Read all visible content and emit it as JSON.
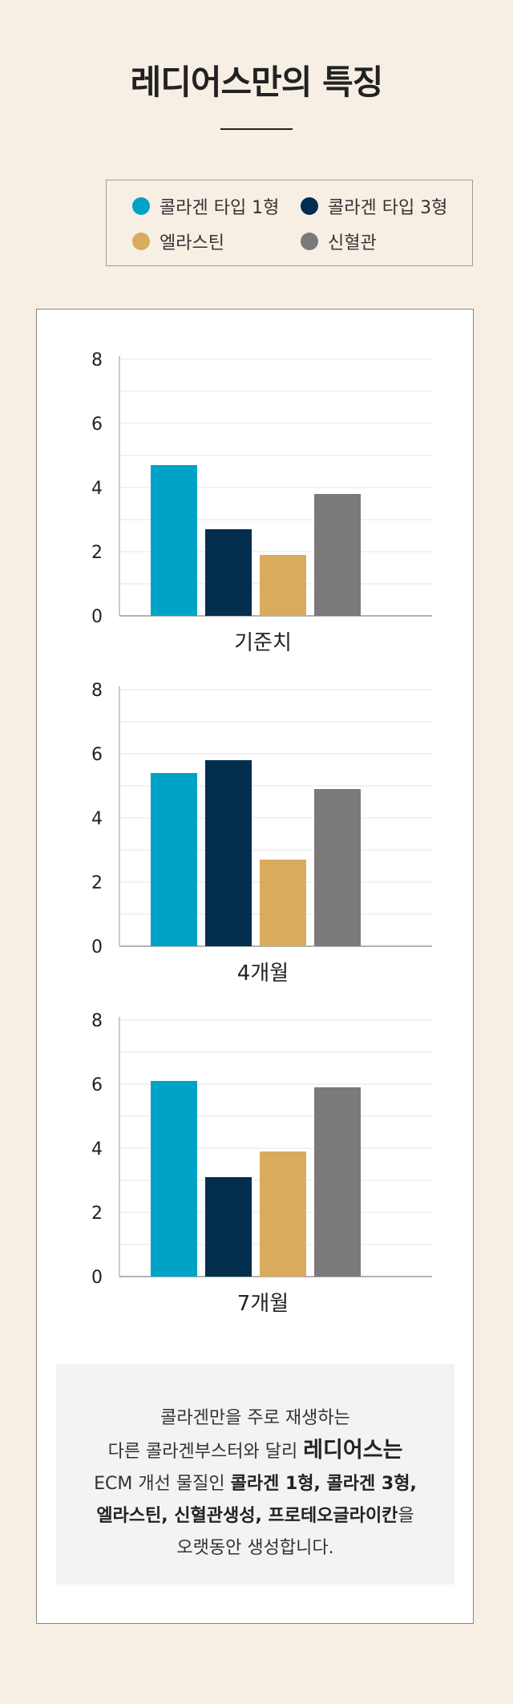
{
  "page": {
    "title": "레디어스만의 특징"
  },
  "legend": [
    {
      "label": "콜라겐 타입 1형",
      "color": "#00a3c8"
    },
    {
      "label": "콜라겐 타입 3형",
      "color": "#022d4d"
    },
    {
      "label": "엘라스틴",
      "color": "#d8ab5d"
    },
    {
      "label": "신혈관",
      "color": "#7b797b"
    }
  ],
  "chart_data": [
    {
      "type": "bar",
      "title": "기준치",
      "categories": [
        "콜라겐 타입 1형",
        "콜라겐 타입 3형",
        "엘라스틴",
        "신혈관"
      ],
      "values": [
        4.7,
        2.7,
        1.9,
        3.8
      ],
      "yticks": [
        "0",
        "2",
        "4",
        "6",
        "8"
      ],
      "ylim": [
        0,
        8
      ],
      "grid": true
    },
    {
      "type": "bar",
      "title": "4개월",
      "categories": [
        "콜라겐 타입 1형",
        "콜라겐 타입 3형",
        "엘라스틴",
        "신혈관"
      ],
      "values": [
        5.4,
        5.8,
        2.7,
        4.9
      ],
      "yticks": [
        "0",
        "2",
        "4",
        "6",
        "8"
      ],
      "ylim": [
        0,
        8
      ],
      "grid": true
    },
    {
      "type": "bar",
      "title": "7개월",
      "categories": [
        "콜라겐 타입 1형",
        "콜라겐 타입 3형",
        "엘라스틴",
        "신혈관"
      ],
      "values": [
        6.1,
        3.1,
        3.9,
        5.9
      ],
      "yticks": [
        "0",
        "2",
        "4",
        "6",
        "8"
      ],
      "ylim": [
        0,
        8
      ],
      "grid": true
    }
  ],
  "note": {
    "line1": "콜라겐만을 주로 재생하는",
    "line2_pre": "다른 콜라겐부스터와 달리 ",
    "line2_bold": "레디어스는",
    "line3_pre": "ECM 개선 물질인 ",
    "line3_bold": "콜라겐 1형, 콜라겐 3형,",
    "line4_bold": "엘라스틴, 신혈관생성, 프로테오글라이칸",
    "line4_post": "을",
    "line5": "오랫동안 생성합니다."
  }
}
